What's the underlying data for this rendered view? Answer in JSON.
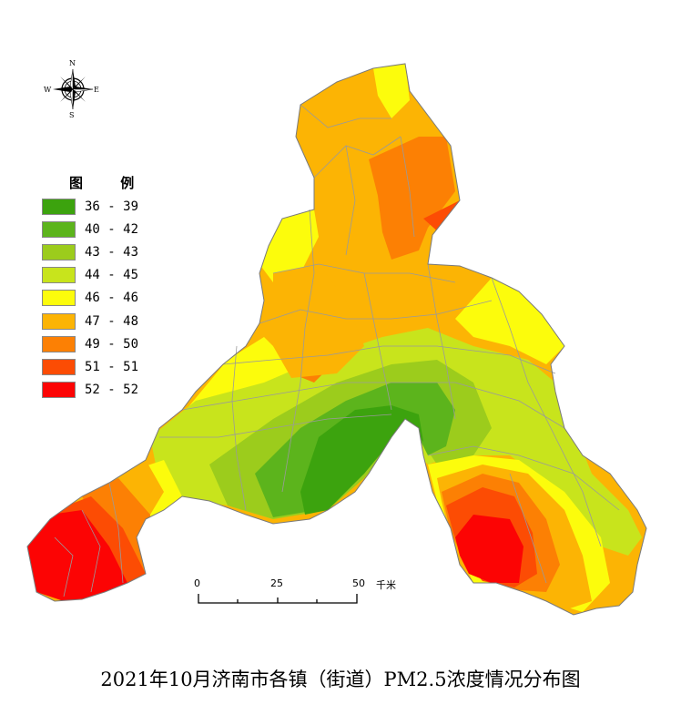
{
  "title": "2021年10月济南市各镇（街道）PM2.5浓度情况分布图",
  "legend": {
    "heading": "图 例",
    "classes": [
      {
        "label": "36 - 39",
        "color": "#3ca30e"
      },
      {
        "label": "40 - 42",
        "color": "#5cb41c"
      },
      {
        "label": "43 - 43",
        "color": "#9ccc1c"
      },
      {
        "label": "44 - 45",
        "color": "#c8e41c"
      },
      {
        "label": "46 - 46",
        "color": "#fcfc0c"
      },
      {
        "label": "47 - 48",
        "color": "#fcb404"
      },
      {
        "label": "49 - 50",
        "color": "#fc8004"
      },
      {
        "label": "51 - 51",
        "color": "#fc4c04"
      },
      {
        "label": "52 - 52",
        "color": "#fc0404"
      }
    ]
  },
  "north_arrow": {
    "n": "N",
    "s": "S",
    "e": "E",
    "w": "W"
  },
  "scale_bar": {
    "ticks": [
      "0",
      "25",
      "50"
    ],
    "unit": "千米"
  },
  "colors": {
    "boundary": "#9a9a9a",
    "background": "#ffffff"
  }
}
